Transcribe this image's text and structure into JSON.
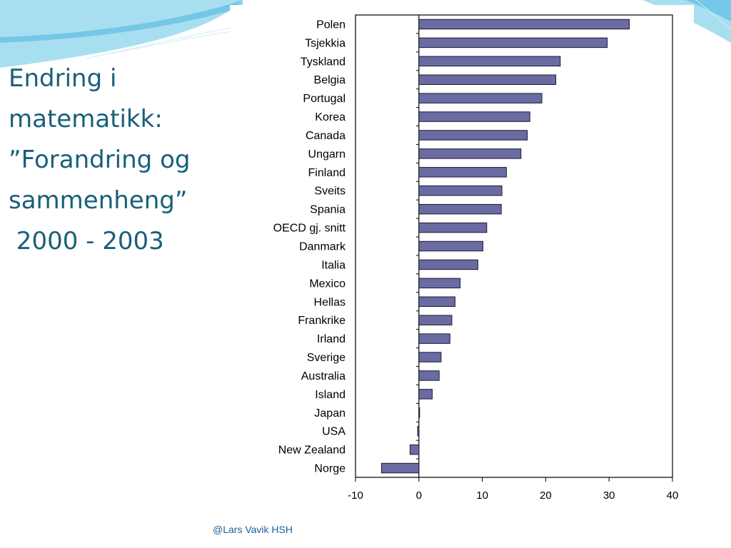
{
  "slide": {
    "title_lines": [
      "Endring i",
      "matematikk:",
      "”Forandring og",
      "sammenheng”",
      " 2000 - 2003"
    ],
    "footer": "@Lars Vavik HSH"
  },
  "colors": {
    "bar_fill": "#6b6ba3",
    "bar_stroke": "#1a1a33",
    "title": "#17607a",
    "footer": "#1f5f93",
    "wave_light": "#a8dff0",
    "wave_mid": "#52b8df"
  },
  "chart_data": {
    "type": "bar",
    "orientation": "horizontal",
    "title": "",
    "xlabel": "",
    "ylabel": "",
    "xlim": [
      -10,
      40
    ],
    "xticks": [
      "-10",
      "0",
      "10",
      "20",
      "30",
      "40"
    ],
    "grid": false,
    "legend": "none",
    "categories": [
      "Polen",
      "Tsjekkia",
      "Tyskland",
      "Belgia",
      "Portugal",
      "Korea",
      "Canada",
      "Ungarn",
      "Finland",
      "Sveits",
      "Spania",
      "OECD gj. snitt",
      "Danmark",
      "Italia",
      "Mexico",
      "Hellas",
      "Frankrike",
      "Irland",
      "Sverige",
      "Australia",
      "Island",
      "Japan",
      "USA",
      "New Zealand",
      "Norge"
    ],
    "values": [
      33.2,
      29.7,
      22.3,
      21.6,
      19.4,
      17.5,
      17.1,
      16.1,
      13.8,
      13.1,
      13.0,
      10.7,
      10.1,
      9.3,
      6.5,
      5.7,
      5.2,
      4.9,
      3.5,
      3.2,
      2.1,
      0.0,
      -0.2,
      -1.4,
      -5.9
    ]
  }
}
